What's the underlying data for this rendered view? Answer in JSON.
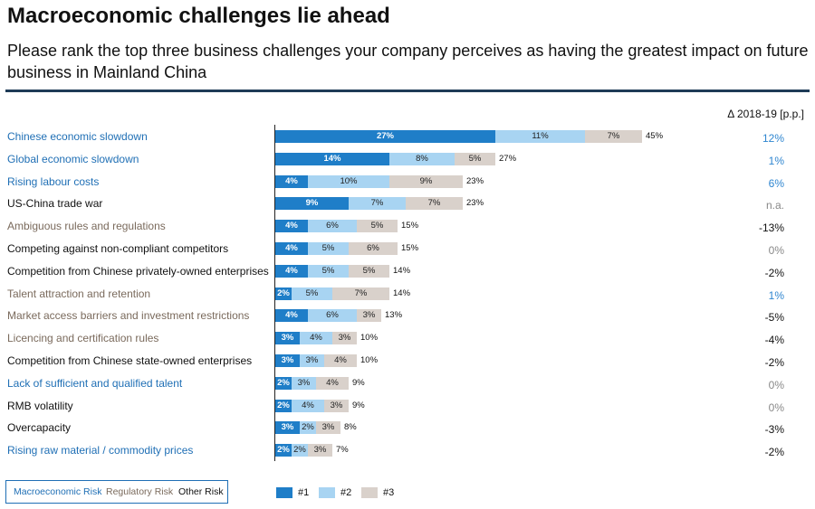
{
  "title": "Macroeconomic challenges lie ahead",
  "subtitle": "Please rank the top three business challenges your company perceives as having the greatest impact on future business in Mainland China",
  "delta_header": "Δ 2018-19 [p.p.]",
  "colors": {
    "rank1": "#1f7ec8",
    "rank2": "#a8d4f2",
    "rank3": "#d9d1cb",
    "macro": "#1f6fb5",
    "regulatory": "#7a6a5c",
    "other": "#111111",
    "delta_pos": "#2f86d0",
    "delta_neg": "#111111",
    "delta_muted": "#888888"
  },
  "legend": {
    "categories": [
      "Macroeconomic Risk",
      "Regulatory Risk",
      "Other Risk"
    ],
    "ranks": [
      "#1",
      "#2",
      "#3"
    ]
  },
  "chart_data": {
    "type": "bar",
    "stacked": true,
    "orientation": "horizontal",
    "series": [
      {
        "name": "#1",
        "values": [
          27,
          14,
          4,
          9,
          4,
          4,
          4,
          2,
          4,
          3,
          3,
          2,
          2,
          3,
          2
        ]
      },
      {
        "name": "#2",
        "values": [
          11,
          8,
          10,
          7,
          6,
          5,
          5,
          5,
          6,
          4,
          3,
          3,
          4,
          2,
          2
        ]
      },
      {
        "name": "#3",
        "values": [
          7,
          5,
          9,
          7,
          5,
          6,
          5,
          7,
          3,
          3,
          4,
          4,
          3,
          3,
          3
        ]
      }
    ],
    "rows": [
      {
        "label": "Chinese economic slowdown",
        "category": "macro",
        "seg": [
          "27%",
          "11%",
          "7%"
        ],
        "total": "45%",
        "total_value": 45,
        "delta": "12%",
        "delta_style": "pos"
      },
      {
        "label": "Global economic slowdown",
        "category": "macro",
        "seg": [
          "14%",
          "8%",
          "5%"
        ],
        "total": "27%",
        "total_value": 27,
        "delta": "1%",
        "delta_style": "pos"
      },
      {
        "label": "Rising labour costs",
        "category": "macro",
        "seg": [
          "4%",
          "10%",
          "9%"
        ],
        "total": "23%",
        "total_value": 23,
        "delta": "6%",
        "delta_style": "pos"
      },
      {
        "label": "US-China trade war",
        "category": "other",
        "seg": [
          "9%",
          "7%",
          "7%"
        ],
        "total": "23%",
        "total_value": 23,
        "delta": "n.a.",
        "delta_style": "muted"
      },
      {
        "label": "Ambiguous rules and regulations",
        "category": "regulatory",
        "seg": [
          "4%",
          "6%",
          "5%"
        ],
        "total": "15%",
        "total_value": 15,
        "delta": "-13%",
        "delta_style": "neg"
      },
      {
        "label": "Competing against non-compliant competitors",
        "category": "other",
        "seg": [
          "4%",
          "5%",
          "6%"
        ],
        "total": "15%",
        "total_value": 15,
        "delta": "0%",
        "delta_style": "muted"
      },
      {
        "label": "Competition from Chinese privately-owned enterprises",
        "category": "other",
        "seg": [
          "4%",
          "5%",
          "5%"
        ],
        "total": "14%",
        "total_value": 14,
        "delta": "-2%",
        "delta_style": "neg"
      },
      {
        "label": "Talent attraction and retention",
        "category": "regulatory",
        "seg": [
          "2%",
          "5%",
          "7%"
        ],
        "total": "14%",
        "total_value": 14,
        "delta": "1%",
        "delta_style": "pos"
      },
      {
        "label": "Market access barriers and investment restrictions",
        "category": "regulatory",
        "seg": [
          "4%",
          "6%",
          "3%"
        ],
        "total": "13%",
        "total_value": 13,
        "delta": "-5%",
        "delta_style": "neg"
      },
      {
        "label": "Licencing and certification rules",
        "category": "regulatory",
        "seg": [
          "3%",
          "4%",
          "3%"
        ],
        "total": "10%",
        "total_value": 10,
        "delta": "-4%",
        "delta_style": "neg"
      },
      {
        "label": "Competition from Chinese state-owned enterprises",
        "category": "other",
        "seg": [
          "3%",
          "3%",
          "4%"
        ],
        "total": "10%",
        "total_value": 10,
        "delta": "-2%",
        "delta_style": "neg"
      },
      {
        "label": "Lack of sufficient and qualified talent",
        "category": "macro",
        "seg": [
          "2%",
          "3%",
          "4%"
        ],
        "total": "9%",
        "total_value": 9,
        "delta": "0%",
        "delta_style": "muted"
      },
      {
        "label": "RMB volatility",
        "category": "other",
        "seg": [
          "2%",
          "4%",
          "3%"
        ],
        "total": "9%",
        "total_value": 9,
        "delta": "0%",
        "delta_style": "muted"
      },
      {
        "label": "Overcapacity",
        "category": "other",
        "seg": [
          "3%",
          "2%",
          "3%"
        ],
        "total": "8%",
        "total_value": 8,
        "delta": "-3%",
        "delta_style": "neg"
      },
      {
        "label": "Rising raw material / commodity prices",
        "category": "macro",
        "seg": [
          "2%",
          "2%",
          "3%"
        ],
        "total": "7%",
        "total_value": 7,
        "delta": "-2%",
        "delta_style": "neg"
      }
    ],
    "xlim": [
      0,
      45
    ]
  }
}
